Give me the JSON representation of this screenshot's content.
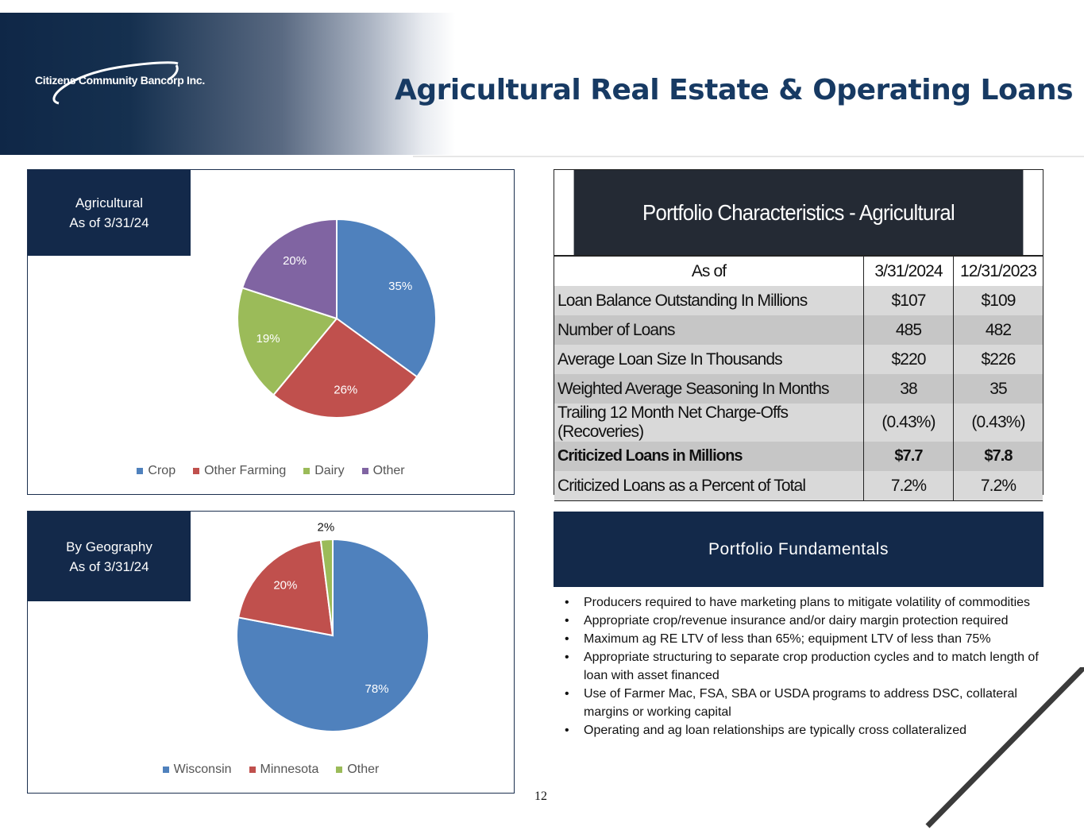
{
  "header": {
    "logo_text": "Citizens Community Bancorp Inc.",
    "title": "Agricultural Real Estate & Operating Loans"
  },
  "chart_data": [
    {
      "type": "pie",
      "title_lines": [
        "Agricultural",
        "As of 3/31/24"
      ],
      "categories": [
        "Crop",
        "Other Farming",
        "Dairy",
        "Other"
      ],
      "values": [
        35,
        26,
        19,
        20
      ],
      "labels": [
        "35%",
        "26%",
        "19%",
        "20%"
      ],
      "colors": [
        "#4f81bd",
        "#c0504d",
        "#9bbb59",
        "#8064a2"
      ],
      "legend": "bottom"
    },
    {
      "type": "pie",
      "title_lines": [
        "By Geography",
        "As of 3/31/24"
      ],
      "categories": [
        "Wisconsin",
        "Minnesota",
        "Other"
      ],
      "values": [
        78,
        20,
        2
      ],
      "labels": [
        "78%",
        "20%",
        "2%"
      ],
      "colors": [
        "#4f81bd",
        "#c0504d",
        "#9bbb59"
      ],
      "legend": "bottom"
    }
  ],
  "portfolio": {
    "title": "Portfolio Characteristics - Agricultural",
    "columns": [
      "As of",
      "3/31/2024",
      "12/31/2023"
    ],
    "rows": [
      {
        "label": "Loan Balance Outstanding In Millions",
        "v1": "$107",
        "v2": "$109"
      },
      {
        "label": "Number of Loans",
        "v1": "485",
        "v2": "482"
      },
      {
        "label": "Average Loan Size In Thousands",
        "v1": "$220",
        "v2": "$226"
      },
      {
        "label": "Weighted Average Seasoning  In Months",
        "v1": "38",
        "v2": "35"
      },
      {
        "label": "Trailing 12 Month Net Charge-Offs (Recoveries)",
        "v1": "(0.43%)",
        "v2": "(0.43%)"
      },
      {
        "label": "Criticized Loans in Millions",
        "v1": "$7.7",
        "v2": "$7.8"
      },
      {
        "label": "Criticized Loans as a Percent of Total",
        "v1": "7.2%",
        "v2": "7.2%"
      }
    ]
  },
  "fundamentals": {
    "title": "Portfolio Fundamentals",
    "bullets": [
      "Producers required to have marketing plans to mitigate volatility of commodities",
      "Appropriate crop/revenue insurance and/or dairy margin protection required",
      "Maximum ag RE LTV of less than 65%; equipment LTV of less than 75%",
      "Appropriate structuring to separate crop production cycles and to match length of loan with asset financed",
      "Use of Farmer Mac, FSA, SBA or USDA programs to address DSC, collateral margins or working capital",
      "Operating and ag loan relationships are typically cross collateralized"
    ]
  },
  "page_number": "12"
}
